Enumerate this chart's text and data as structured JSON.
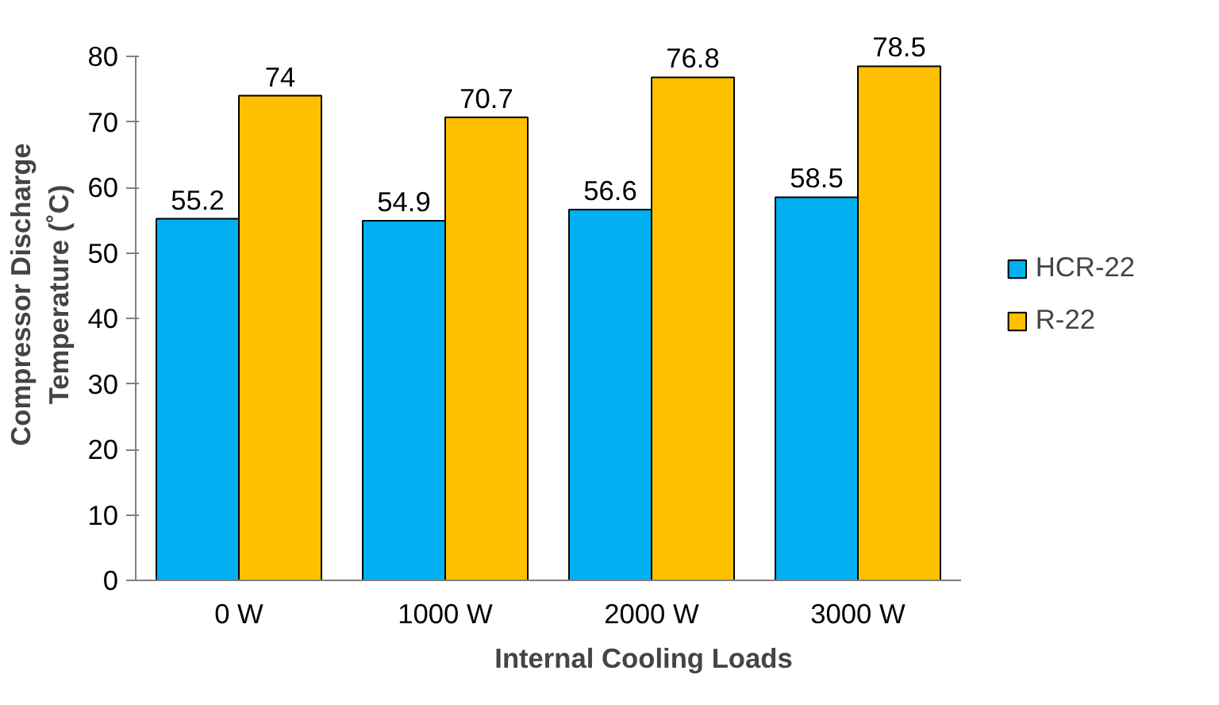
{
  "chart_data": {
    "type": "bar",
    "xlabel": "Internal Cooling Loads",
    "ylabel": "Compressor Discharge Temperature (˚C)",
    "categories": [
      "0 W",
      "1000 W",
      "2000 W",
      "3000 W"
    ],
    "series": [
      {
        "name": "HCR-22",
        "color": "#00b0f0",
        "values": [
          55.2,
          54.9,
          56.6,
          58.5
        ]
      },
      {
        "name": "R-22",
        "color": "#ffc000",
        "values": [
          74,
          70.7,
          76.8,
          78.5
        ]
      }
    ],
    "ylim": [
      0,
      80
    ],
    "yticks": [
      0,
      10,
      20,
      30,
      40,
      50,
      60,
      70,
      80
    ],
    "grid": false,
    "legend": "right",
    "data_labels": true
  }
}
